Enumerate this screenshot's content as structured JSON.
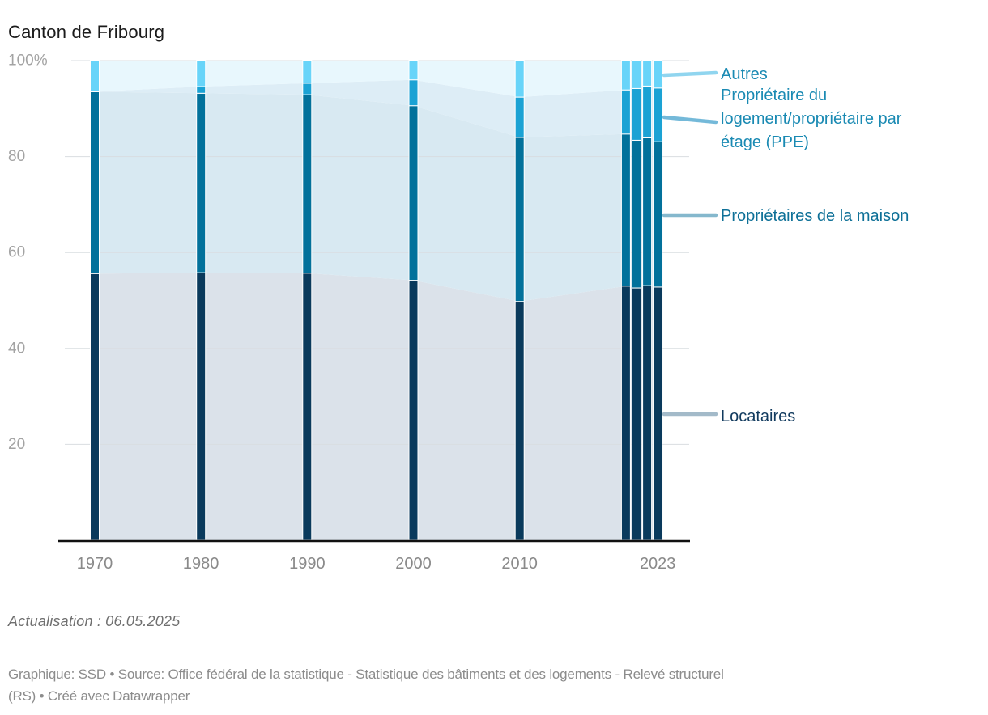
{
  "title": "Canton de Fribourg",
  "chart_data": {
    "type": "area",
    "stacked": true,
    "unit": "%",
    "grid": "horizontal",
    "legend_position": "right-direct-labels",
    "x": [
      1970,
      1980,
      1990,
      2000,
      2010,
      2020,
      2021,
      2022,
      2023
    ],
    "x_tick_years": [
      1970,
      1980,
      1990,
      2000,
      2010,
      2023
    ],
    "x_tick_labels": [
      "1970",
      "1980",
      "1990",
      "2000",
      "2010",
      "2023"
    ],
    "y_ticks": [
      20,
      40,
      60,
      80,
      100
    ],
    "y_tick_labels": [
      "20",
      "40",
      "60",
      "80",
      "100%"
    ],
    "ylim": [
      0,
      100
    ],
    "series": [
      {
        "key": "locataires",
        "name": "Locataires",
        "values": [
          55.6,
          55.8,
          55.7,
          54.2,
          49.8,
          53.0,
          52.6,
          53.1,
          52.8
        ],
        "bar_color": "#0a3a5c",
        "area_color": "#dbe2ea",
        "label_color": "#113a5e",
        "connector_color": "#a3bac9"
      },
      {
        "key": "maison",
        "name": "Propriétaires de la maison",
        "values": [
          37.9,
          37.4,
          37.2,
          36.4,
          34.2,
          31.7,
          30.8,
          30.8,
          30.3
        ],
        "bar_color": "#02719b",
        "area_color": "#d8e9f2",
        "label_color": "#0e7097",
        "connector_color": "#85b8cd"
      },
      {
        "key": "ppe",
        "name": "Propriétaire du logement/propriétaire par étage (PPE)",
        "values": [
          0.0,
          1.4,
          2.4,
          5.4,
          8.4,
          9.2,
          10.8,
          10.8,
          11.2
        ],
        "bar_color": "#1ba2d4",
        "area_color": "#ddedf6",
        "label_color": "#1a8ab3",
        "connector_color": "#74b9d9"
      },
      {
        "key": "autres",
        "name": "Autres",
        "values": [
          6.5,
          5.4,
          4.7,
          4.0,
          7.6,
          6.1,
          5.8,
          5.3,
          5.7
        ],
        "bar_color": "#68d4f9",
        "area_color": "#e8f7fd",
        "label_color": "#1a8ab3",
        "connector_color": "#90d5ef"
      }
    ],
    "direct_labels": {
      "autres": {
        "lines": [
          "Autres"
        ]
      },
      "ppe": {
        "lines": [
          "Propriétaire du",
          "logement/propriétaire par",
          "étage (PPE)"
        ]
      },
      "maison": {
        "lines": [
          "Propriétaires de la maison"
        ]
      },
      "locataires": {
        "lines": [
          "Locataires"
        ]
      }
    }
  },
  "footer": {
    "updated": "Actualisation : 06.05.2025",
    "caption_line1": "Graphique: SSD • Source: Office fédéral de la statistique - Statistique des bâtiments et des logements - Relevé structurel",
    "caption_line2": "(RS) • Créé avec Datawrapper"
  }
}
